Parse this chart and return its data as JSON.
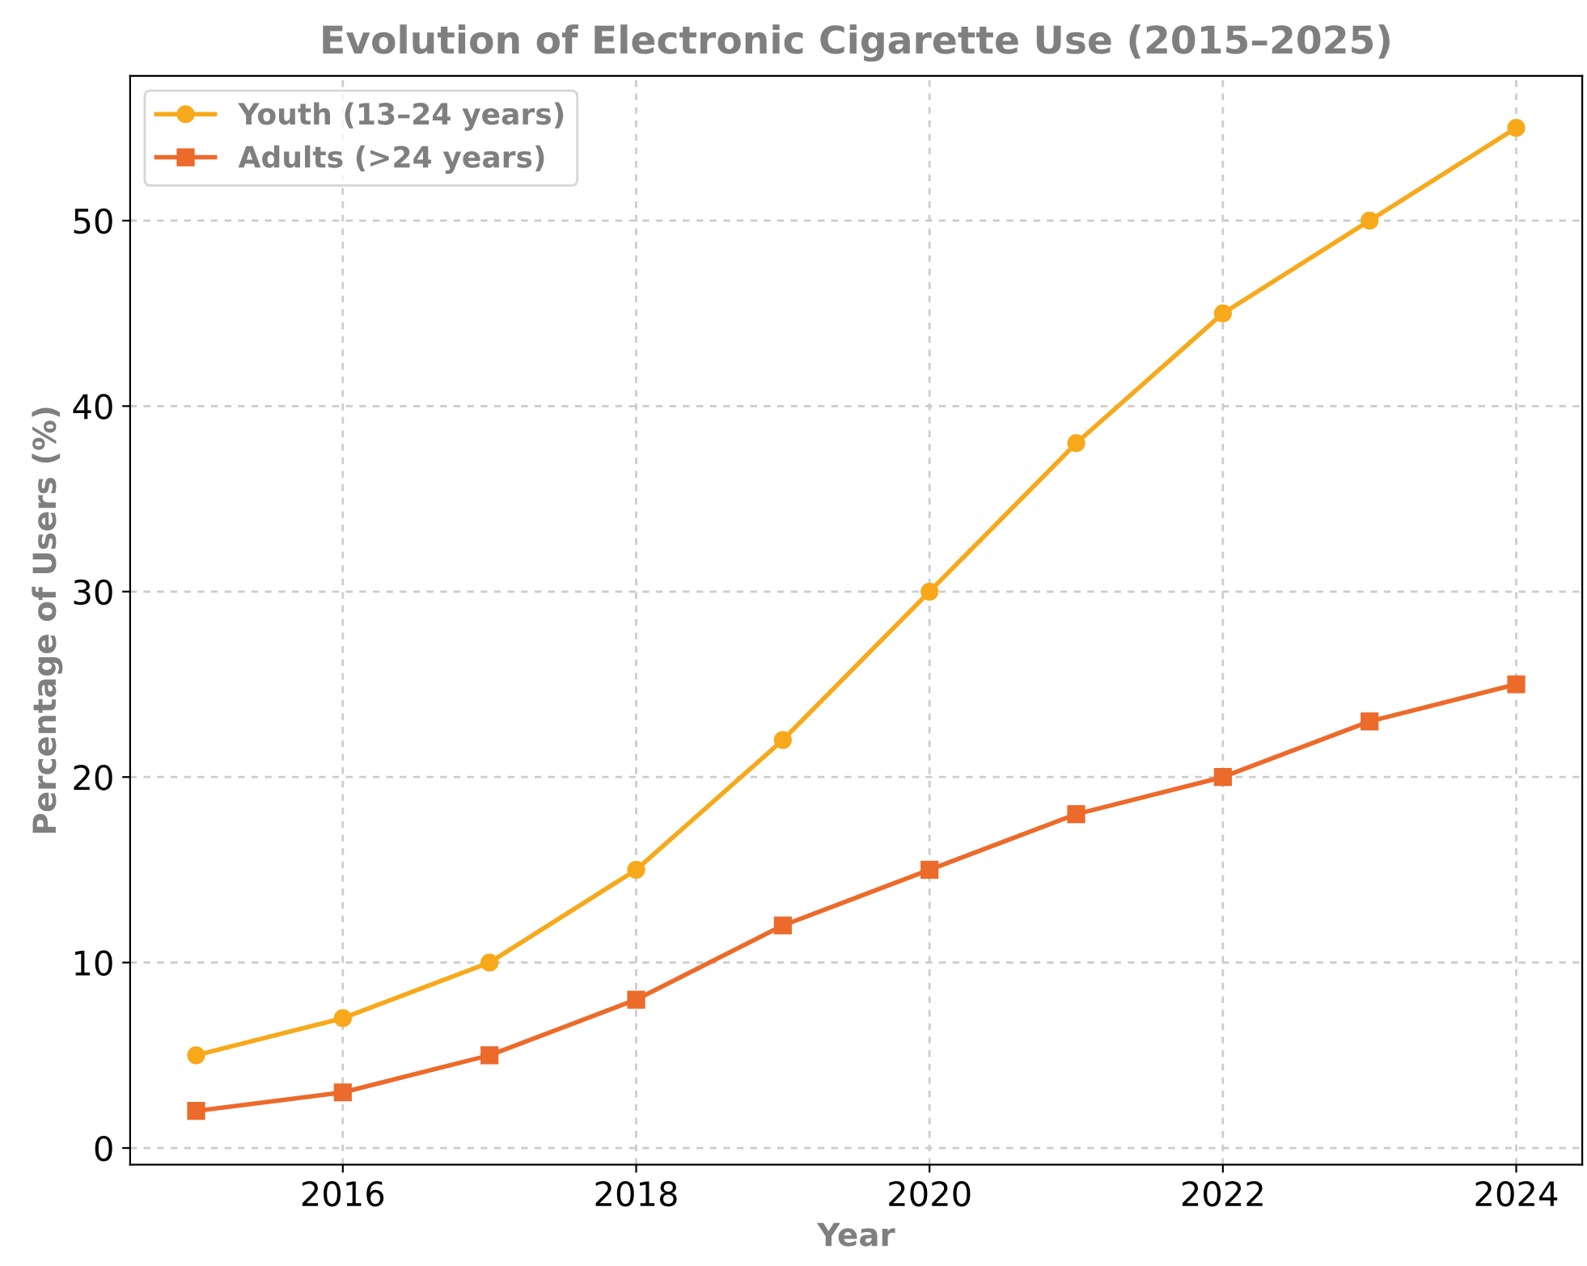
{
  "chart_data": {
    "type": "line",
    "title": "Evolution of Electronic Cigarette Use (2015–2025)",
    "xlabel": "Year",
    "ylabel": "Percentage of Users (%)",
    "x": [
      2015,
      2016,
      2017,
      2018,
      2019,
      2020,
      2021,
      2022,
      2023,
      2024
    ],
    "series": [
      {
        "name": "Youth (13–24 years)",
        "color": "#f7a91b",
        "marker": "circle",
        "values": [
          5,
          7,
          10,
          15,
          22,
          30,
          38,
          45,
          50,
          55
        ]
      },
      {
        "name": "Adults (>24 years)",
        "color": "#ec6a2a",
        "marker": "square",
        "values": [
          2,
          3,
          5,
          8,
          12,
          15,
          18,
          20,
          23,
          25
        ]
      }
    ],
    "xlim": [
      2014.55,
      2024.45
    ],
    "xticks": [
      2016,
      2018,
      2020,
      2022,
      2024
    ],
    "ylim": [
      -0.9,
      57.8
    ],
    "yticks": [
      0,
      10,
      20,
      30,
      40,
      50
    ],
    "grid": true,
    "legend": "top left",
    "line_style": "solid"
  }
}
